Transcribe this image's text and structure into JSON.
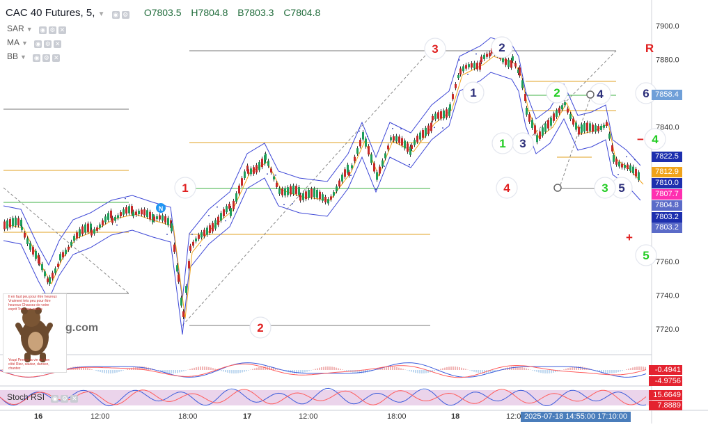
{
  "legend": {
    "symbol": "CAC 40 Futures, 5,",
    "open": "O7803.5",
    "high": "H7804.8",
    "low": "B7803.3",
    "close": "C7804.8"
  },
  "indicators": [
    "SAR",
    "MA",
    "BB"
  ],
  "watermark": "g.com",
  "oscillator_label": "Stoch RSI",
  "bear_note_top": "Il en faut peu pour être heureux Vraiment très peu pour être heureux Chassez de votre esprit Tous vos soucis",
  "bear_note_bottom": "Youpi Prenez la vie du bon côté Riez, sautez, dansez, chantez",
  "price_axis": {
    "ticks": [
      "7900.0",
      "7880.0",
      "7840.0",
      "7760.0",
      "7740.0",
      "7720.0"
    ],
    "tags": [
      {
        "label": "7858.4",
        "color": "#6f9fd8"
      },
      {
        "label": "7822.5",
        "color": "#1d2fae"
      },
      {
        "label": "7812.9",
        "color": "#f0a31a"
      },
      {
        "label": "7810.0",
        "color": "#1d2fae"
      },
      {
        "label": "7807.7",
        "color": "#ff2fb0"
      },
      {
        "label": "7804.8",
        "color": "#5b6bc8"
      },
      {
        "label": "7803.2",
        "color": "#1d2fae"
      },
      {
        "label": "7803.2",
        "color": "#5b6bc8"
      }
    ]
  },
  "oscillator_tags": [
    "-0.4941",
    "-4.9756",
    "15.6649",
    "7.8889"
  ],
  "time_axis": [
    "16",
    "12:00",
    "18:00",
    "17",
    "12:00",
    "18:00",
    "18",
    "12:0"
  ],
  "crosshair_time": "2025-07-18 14:55:00  17:10:00",
  "wave_labels": [
    {
      "text": "1",
      "color": "#e02020"
    },
    {
      "text": "2",
      "color": "#e02020"
    },
    {
      "text": "3",
      "color": "#e02020"
    },
    {
      "text": "4",
      "color": "#e02020"
    },
    {
      "text": "1",
      "color": "#2c2f7a"
    },
    {
      "text": "2",
      "color": "#2c2f7a"
    },
    {
      "text": "3",
      "color": "#2c2f7a"
    },
    {
      "text": "4",
      "color": "#2c2f7a"
    },
    {
      "text": "5",
      "color": "#2c2f7a"
    },
    {
      "text": "6",
      "color": "#2c2f7a"
    },
    {
      "text": "1",
      "color": "#22cc22"
    },
    {
      "text": "2",
      "color": "#22cc22"
    },
    {
      "text": "3",
      "color": "#22cc22"
    },
    {
      "text": "4",
      "color": "#22cc22"
    },
    {
      "text": "5",
      "color": "#22cc22"
    },
    {
      "text": "R",
      "color": "#e02020"
    },
    {
      "text": "−",
      "color": "#e02020"
    },
    {
      "text": "+",
      "color": "#e02020"
    }
  ],
  "colors": {
    "candle_up": "#1e9e5a",
    "candle_down": "#c62828",
    "bollinger": "#3c46d6",
    "moving_average": "#f0a31a",
    "sar": "#1d2fae",
    "level_orange": "#e0a020",
    "level_green": "#3cb043",
    "level_gray": "#777777"
  }
}
